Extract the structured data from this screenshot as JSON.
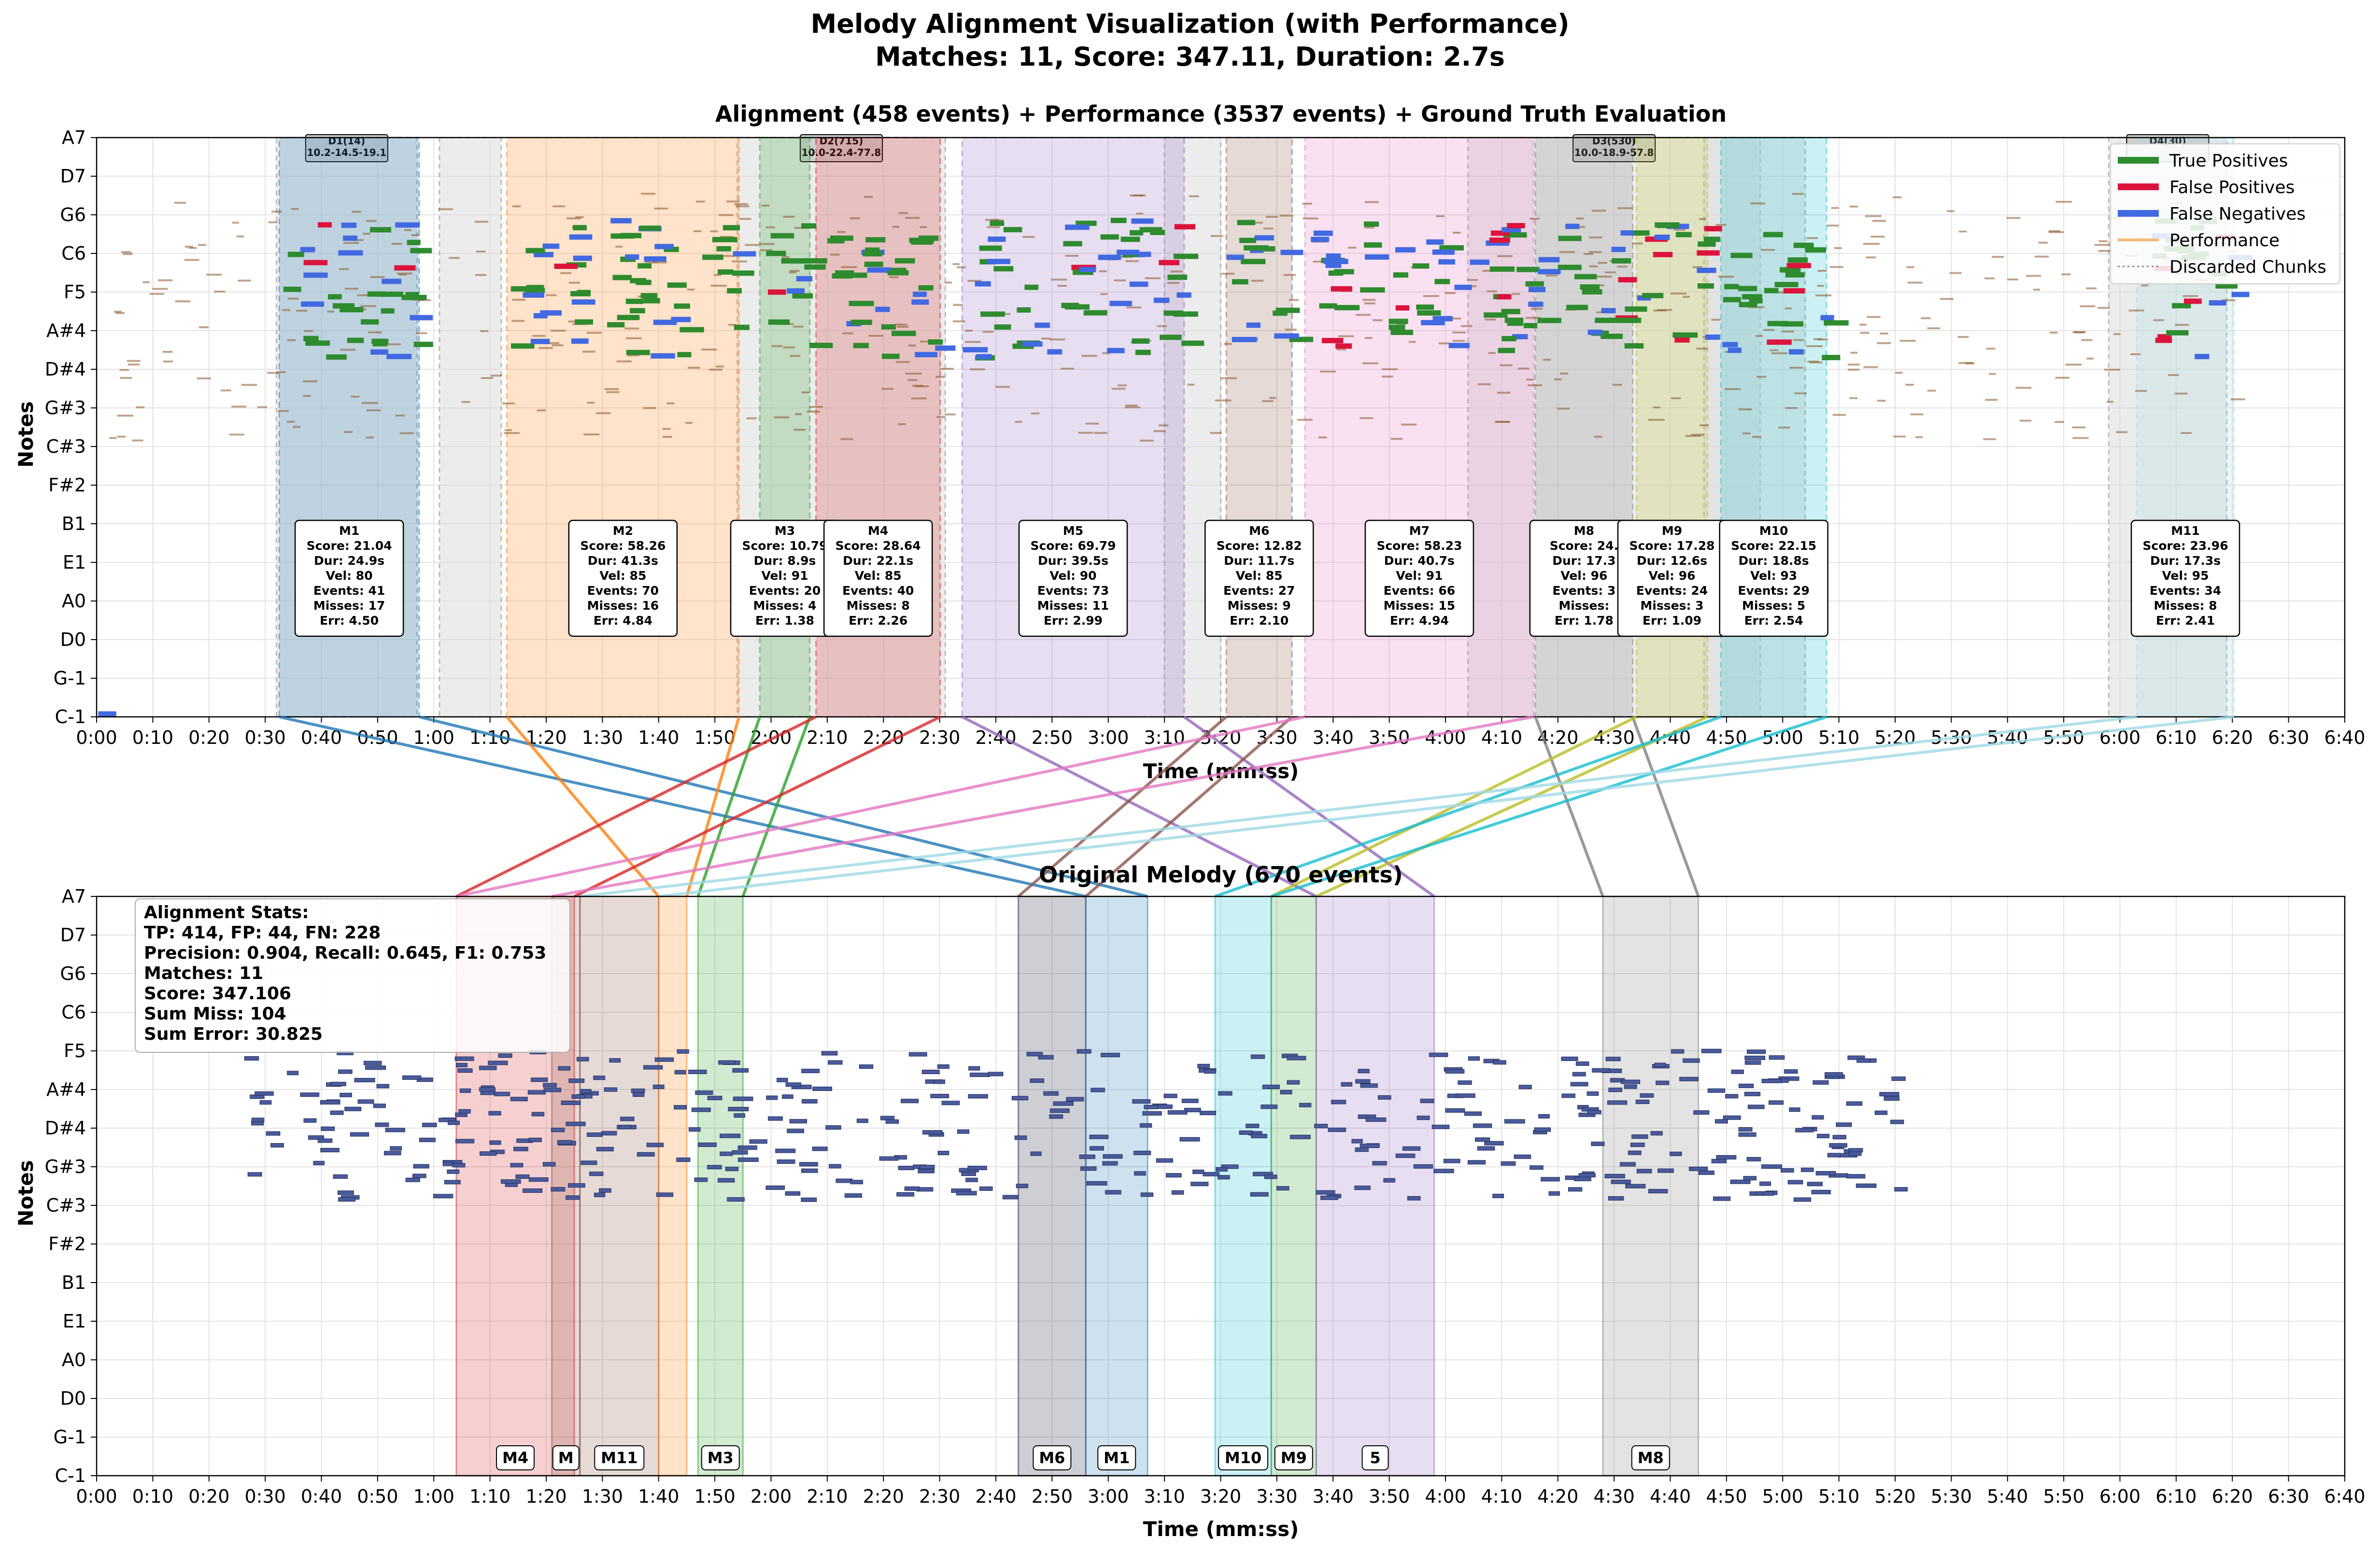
{
  "figure": {
    "title_line1": "Melody Alignment Visualization (with Performance)",
    "title_line2": "Matches: 11, Score: 347.11, Duration: 2.7s"
  },
  "colors": {
    "true_positive": "#2e8b2e",
    "false_positive": "#dc143c",
    "false_negative": "#4169e1",
    "performance": "#8b5a2b",
    "discarded": "#bdbdbd",
    "original_note": "#4a5a9a",
    "match_palette": [
      "#1f77b4",
      "#ff7f0e",
      "#2ca02c",
      "#d62728",
      "#9467bd",
      "#8c564b",
      "#e377c2",
      "#7f7f7f",
      "#bcbd22",
      "#17becf",
      "#9edae5"
    ]
  },
  "chart_data": [
    {
      "type": "scatter",
      "title": "Alignment (458 events) + Performance (3537 events) + Ground Truth Evaluation",
      "xlabel": "Time (mm:ss)",
      "ylabel": "Notes",
      "x_unit": "seconds",
      "xlim": [
        0,
        400
      ],
      "x_ticks": [
        "0:00",
        "0:10",
        "0:20",
        "0:30",
        "0:40",
        "0:50",
        "1:00",
        "1:10",
        "1:20",
        "1:30",
        "1:40",
        "1:50",
        "2:00",
        "2:10",
        "2:20",
        "2:30",
        "2:40",
        "2:50",
        "3:00",
        "3:10",
        "3:20",
        "3:30",
        "3:40",
        "3:50",
        "4:00",
        "4:10",
        "4:20",
        "4:30",
        "4:40",
        "4:50",
        "5:00",
        "5:10",
        "5:20",
        "5:30",
        "5:40",
        "5:50",
        "6:00",
        "6:10",
        "6:20",
        "6:30",
        "6:40"
      ],
      "y_ticks": [
        "C-1",
        "G-1",
        "D0",
        "A0",
        "E1",
        "B1",
        "F#2",
        "C#3",
        "G#3",
        "D#4",
        "A#4",
        "F5",
        "C6",
        "G6",
        "D7",
        "A7"
      ],
      "y_tick_midi": [
        0,
        7,
        14,
        21,
        28,
        35,
        42,
        49,
        56,
        63,
        70,
        77,
        84,
        91,
        98,
        105
      ],
      "ylim": [
        0,
        105
      ],
      "grid": true,
      "legend_position": "top-right",
      "legend": [
        "True Positives",
        "False Positives",
        "False Negatives",
        "Performance",
        "Discarded Chunks"
      ],
      "discarded_chunks": [
        {
          "label": "D1(14)",
          "detail": "10.2-14.5-19.1",
          "start": 32,
          "end": 57
        },
        {
          "label": "",
          "detail": "",
          "start": 61,
          "end": 72
        },
        {
          "label": "D2(715)",
          "detail": "10.0-22.4-77.8",
          "start": 114,
          "end": 151
        },
        {
          "label": "",
          "detail": "",
          "start": 190,
          "end": 200
        },
        {
          "label": "D3(530)",
          "detail": "10.0-18.9-57.8",
          "start": 244,
          "end": 296
        },
        {
          "label": "",
          "detail": "",
          "start": 286,
          "end": 304
        },
        {
          "label": "D4(30)",
          "detail": "",
          "start": 358,
          "end": 379
        }
      ],
      "matches": [
        {
          "id": "M1",
          "score": "21.04",
          "dur": "24.9s",
          "vel": "80",
          "events": "41",
          "misses": "17",
          "err": "4.50",
          "start": 32.5,
          "end": 57.4
        },
        {
          "id": "M2",
          "score": "58.26",
          "dur": "41.3s",
          "vel": "85",
          "events": "70",
          "misses": "16",
          "err": "4.84",
          "start": 73,
          "end": 114.3
        },
        {
          "id": "M3",
          "score": "10.79",
          "dur": "8.9s",
          "vel": "91",
          "events": "20",
          "misses": "4",
          "err": "1.38",
          "start": 118,
          "end": 126.9
        },
        {
          "id": "M4",
          "score": "28.64",
          "dur": "22.1s",
          "vel": "85",
          "events": "40",
          "misses": "8",
          "err": "2.26",
          "start": 128,
          "end": 150.1
        },
        {
          "id": "M5",
          "score": "69.79",
          "dur": "39.5s",
          "vel": "90",
          "events": "73",
          "misses": "11",
          "err": "2.99",
          "start": 154,
          "end": 193.5
        },
        {
          "id": "M6",
          "score": "12.82",
          "dur": "11.7s",
          "vel": "85",
          "events": "27",
          "misses": "9",
          "err": "2.10",
          "start": 201,
          "end": 212.7
        },
        {
          "id": "M7",
          "score": "58.23",
          "dur": "40.7s",
          "vel": "91",
          "events": "66",
          "misses": "15",
          "err": "4.94",
          "start": 215,
          "end": 255.7
        },
        {
          "id": "M8",
          "score": "24.",
          "dur": "17.3",
          "vel": "96",
          "events": "3",
          "misses": "",
          "err": "1.78",
          "start": 256,
          "end": 273.3
        },
        {
          "id": "M9",
          "score": "17.28",
          "dur": "12.6s",
          "vel": "96",
          "events": "24",
          "misses": "3",
          "err": "1.09",
          "start": 274,
          "end": 286.6
        },
        {
          "id": "M10",
          "score": "22.15",
          "dur": "18.8s",
          "vel": "93",
          "events": "29",
          "misses": "5",
          "err": "2.54",
          "start": 289,
          "end": 307.8
        },
        {
          "id": "M11",
          "score": "23.96",
          "dur": "17.3s",
          "vel": "95",
          "events": "34",
          "misses": "8",
          "err": "2.41",
          "start": 363,
          "end": 380.3
        }
      ],
      "stat_labels": {
        "score": "Score: ",
        "dur": "Dur: ",
        "vel": "Vel: ",
        "events": "Events: ",
        "misses": "Misses: ",
        "err": "Err: "
      }
    },
    {
      "type": "scatter",
      "title": "Original Melody (670 events)",
      "xlabel": "Time (mm:ss)",
      "ylabel": "Notes",
      "x_unit": "seconds",
      "xlim": [
        0,
        400
      ],
      "ylim": [
        0,
        105
      ],
      "grid": true,
      "stats_box": [
        "Alignment Stats:",
        "TP: 414, FP: 44, FN: 228",
        "Precision: 0.904, Recall: 0.645, F1: 0.753",
        "Matches: 11",
        "Score: 347.106",
        "Sum Miss: 104",
        "Sum Error: 30.825"
      ],
      "match_regions": [
        {
          "id": "M4",
          "start": 64,
          "end": 85
        },
        {
          "id": "M",
          "start": 81,
          "end": 86
        },
        {
          "id": "M11",
          "start": 86,
          "end": 100
        },
        {
          "id": "",
          "start": 100,
          "end": 105
        },
        {
          "id": "M3",
          "start": 107,
          "end": 115
        },
        {
          "id": "M6",
          "start": 164,
          "end": 176
        },
        {
          "id": "M1",
          "start": 176,
          "end": 187
        },
        {
          "id": "M10",
          "start": 199,
          "end": 209
        },
        {
          "id": "M9",
          "start": 209,
          "end": 217
        },
        {
          "id": "5",
          "start": 217,
          "end": 238
        },
        {
          "id": "M8",
          "start": 268,
          "end": 285
        }
      ]
    }
  ]
}
